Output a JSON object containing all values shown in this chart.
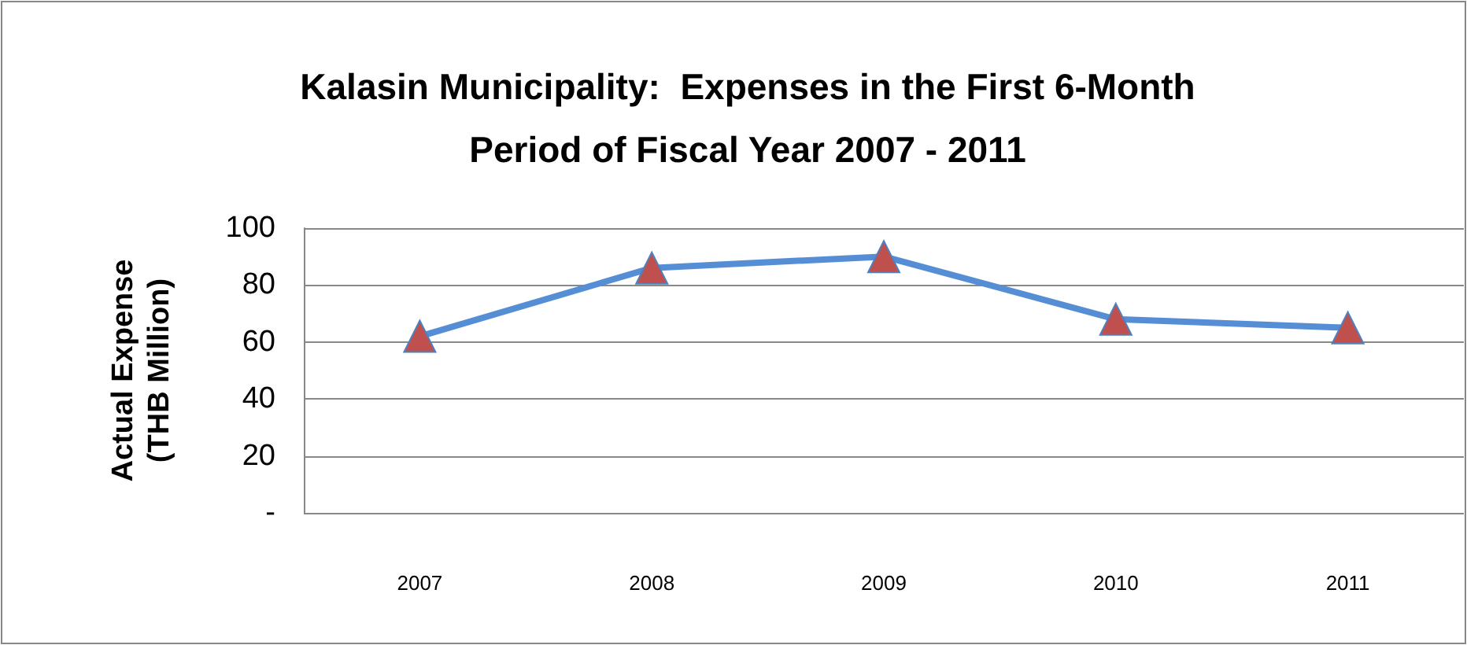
{
  "chart_data": {
    "type": "line",
    "title": "Kalasin Municipality:  Expenses in the First 6-Month\nPeriod of Fiscal Year 2007 - 2011",
    "ylabel": "Actual Expense\n(THB Million)",
    "categories": [
      "2007",
      "2008",
      "2009",
      "2010",
      "2011"
    ],
    "series": [
      {
        "color": "#558ed5",
        "colors": [
          "#c0504d",
          "#c0504d",
          "#c0504d",
          "#c0504d",
          "#c0504d"
        ],
        "values": [
          62,
          86,
          90,
          68,
          65
        ]
      }
    ],
    "ylim": [
      0,
      100
    ],
    "yticks": [
      {
        "value": 0,
        "label": "-"
      },
      20,
      40,
      60,
      80,
      100
    ],
    "grid": "y",
    "marker": "triangle",
    "line_style": "solid"
  }
}
